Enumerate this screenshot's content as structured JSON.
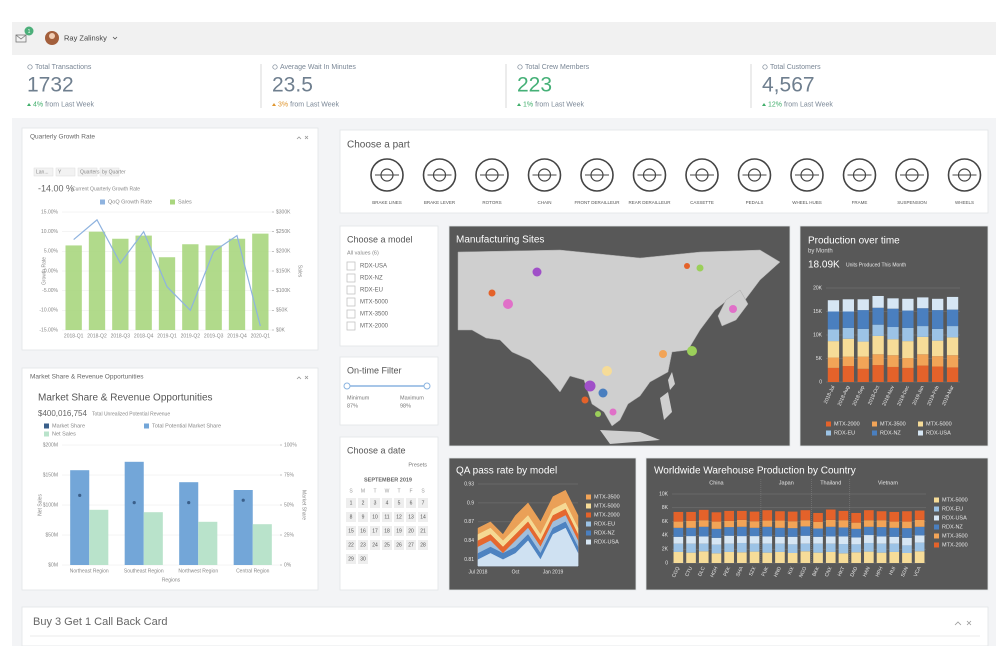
{
  "header": {
    "notifications": "1",
    "user": "Ray Zalinsky"
  },
  "kpis": [
    {
      "label": "Total Transactions",
      "value": "1732",
      "color": "#6f7f8f",
      "change": "4%",
      "change_color": "#3fae6a",
      "note": "from Last Week"
    },
    {
      "label": "Average Wait In Minutes",
      "value": "23.5",
      "color": "#6f7f8f",
      "change": "3%",
      "change_color": "#e0962f",
      "note": "from Last Week"
    },
    {
      "label": "Total Crew Members",
      "value": "223",
      "color": "#45b077",
      "change": "1%",
      "change_color": "#3fae6a",
      "note": "from Last Week"
    },
    {
      "label": "Total Customers",
      "value": "4,567",
      "color": "#6f7f8f",
      "change": "12%",
      "change_color": "#3fae6a",
      "note": "from Last Week"
    }
  ],
  "parts": {
    "title": "Choose a part",
    "items": [
      "BRAKE LINES",
      "BRAKE LEVER",
      "ROTORS",
      "CHAIN",
      "FRONT DERAILLEUR",
      "REAR DERAILLEUR",
      "CASSETTE",
      "PEDALS",
      "WHEEL HUBS",
      "FRAME",
      "SUSPENSION",
      "WHEELS"
    ]
  },
  "models": {
    "title": "Choose a model",
    "all": "All values (6)",
    "items": [
      "RDX-USA",
      "RDX-NZ",
      "RDX-EU",
      "MTX-5000",
      "MTX-3500",
      "MTX-2000"
    ]
  },
  "filter": {
    "title": "On-time Filter",
    "min_label": "Minimum",
    "min": "87%",
    "max_label": "Maximum",
    "max": "98%"
  },
  "date": {
    "title": "Choose a date",
    "presets": "Presets",
    "month": "SEPTEMBER 2019",
    "weekdays": [
      "S",
      "M",
      "T",
      "W",
      "T",
      "F",
      "S"
    ],
    "days": [
      "1",
      "2",
      "3",
      "4",
      "5",
      "6",
      "7",
      "8",
      "9",
      "10",
      "11",
      "12",
      "13",
      "14",
      "15",
      "16",
      "17",
      "18",
      "19",
      "20",
      "21",
      "22",
      "23",
      "24",
      "25",
      "26",
      "27",
      "28",
      "29",
      "30"
    ]
  },
  "map": {
    "title": "Manufacturing Sites"
  },
  "promo": {
    "title": "Buy 3 Get 1 Call Back Card"
  },
  "chart_data": [
    {
      "type": "combo",
      "title": "Quarterly Growth Rate",
      "toolbar": [
        "Lan...",
        "Y",
        "Quarters",
        "by Quarter"
      ],
      "kpi": "-14.00 %",
      "kpi_note": "Current Quarterly Growth Rate",
      "categories": [
        "2018-Q1",
        "2018-Q2",
        "2018-Q3",
        "2018-Q4",
        "2019-Q1",
        "2019-Q2",
        "2019-Q3",
        "2019-Q4",
        "2020-Q1"
      ],
      "series": [
        {
          "name": "QoQ Growth Rate",
          "type": "line",
          "color": "#8fb3df",
          "values": [
            8,
            13,
            2,
            10,
            -4,
            -10,
            5,
            9,
            -14
          ]
        },
        {
          "name": "Sales",
          "type": "bar",
          "axis": "y2",
          "color": "#a9d67e",
          "values": [
            215000,
            250000,
            232000,
            240000,
            185000,
            218000,
            215000,
            232000,
            245000
          ]
        }
      ],
      "ylabel": "Growth Rate",
      "y2label": "Sales",
      "ylim": [
        -15,
        15
      ],
      "yticks": [
        {
          "value": -15,
          "label": "-15.00%"
        },
        {
          "value": -10,
          "label": "-10.00%"
        },
        {
          "value": -5,
          "label": "-5.00%"
        },
        {
          "value": 0,
          "label": "0.00%"
        },
        {
          "value": 5,
          "label": "5.00%"
        },
        {
          "value": 10,
          "label": "10.00%"
        },
        {
          "value": 15,
          "label": "15.00%"
        }
      ],
      "y2lim": [
        0,
        300000
      ],
      "y2ticks": [
        {
          "value": 0,
          "label": "$0K"
        },
        {
          "value": 50000,
          "label": "$50K"
        },
        {
          "value": 100000,
          "label": "$100K"
        },
        {
          "value": 150000,
          "label": "$150K"
        },
        {
          "value": 200000,
          "label": "$200K"
        },
        {
          "value": 250000,
          "label": "$250K"
        },
        {
          "value": 300000,
          "label": "$300K"
        }
      ],
      "grid": true
    },
    {
      "type": "grouped-bar",
      "panel_title": "Market Share & Revenue Opportunities",
      "title": "Market Share & Revenue Opportunities",
      "kpi": "$400,016,754",
      "kpi_note": "Total Unrealized Potential Revenue",
      "categories": [
        "Northeast Region",
        "Southeast Region",
        "Northwest Region",
        "Central Region"
      ],
      "series": [
        {
          "name": "Market Share",
          "type": "dot",
          "axis": "y2",
          "color": "#3a5f8a",
          "values": [
            58,
            52,
            52,
            54
          ]
        },
        {
          "name": "Total Potential Market Share",
          "type": "bar",
          "color": "#73a6d8",
          "values": [
            158000000,
            172000000,
            138000000,
            125000000
          ]
        },
        {
          "name": "Net Sales",
          "type": "bar",
          "color": "#b9e3cb",
          "values": [
            92000000,
            88000000,
            72000000,
            68000000
          ]
        }
      ],
      "xlabel": "Regions",
      "ylabel": "Net Sales",
      "y2label": "Market Share",
      "ylim": [
        0,
        200000000
      ],
      "yticks": [
        {
          "value": 0,
          "label": "$0M"
        },
        {
          "value": 50000000,
          "label": "$50M"
        },
        {
          "value": 100000000,
          "label": "$100M"
        },
        {
          "value": 150000000,
          "label": "$150M"
        },
        {
          "value": 200000000,
          "label": "$200M"
        }
      ],
      "y2lim": [
        0,
        100
      ],
      "y2ticks": [
        {
          "value": 0,
          "label": "0%"
        },
        {
          "value": 25,
          "label": "25%"
        },
        {
          "value": 50,
          "label": "50%"
        },
        {
          "value": 75,
          "label": "75%"
        },
        {
          "value": 100,
          "label": "100%"
        }
      ],
      "grid": true
    },
    {
      "type": "stacked-bar",
      "title": "Production over time",
      "subtitle": "by Month",
      "kpi": "18.09K",
      "kpi_note": "Units Produced This Month",
      "categories": [
        "2018-Jul",
        "2018-Aug",
        "2018-Sep",
        "2018-Oct",
        "2018-Nov",
        "2018-Dec",
        "2019-Jan",
        "2019-Feb",
        "2019-Mar"
      ],
      "series": [
        {
          "name": "MTX-2000",
          "color": "#e4622a",
          "values": [
            3000,
            3400,
            2800,
            3600,
            3200,
            3000,
            3500,
            3300,
            3100
          ]
        },
        {
          "name": "MTX-3500",
          "color": "#f2a457",
          "values": [
            2200,
            2000,
            2600,
            2300,
            2500,
            2100,
            2400,
            2200,
            2600
          ]
        },
        {
          "name": "MTX-5000",
          "color": "#f6dc98",
          "values": [
            3500,
            3800,
            3200,
            3900,
            3400,
            3600,
            3700,
            3300,
            3800
          ]
        },
        {
          "name": "RDX-EU",
          "color": "#9cc3e6",
          "values": [
            2500,
            2300,
            2700,
            2400,
            2600,
            2800,
            2300,
            2500,
            2400
          ]
        },
        {
          "name": "RDX-NZ",
          "color": "#4a7fbf",
          "values": [
            3800,
            3500,
            4000,
            3600,
            3900,
            3700,
            3800,
            4000,
            3500
          ]
        },
        {
          "name": "RDX-USA",
          "color": "#d6e6f4",
          "values": [
            2400,
            2600,
            2300,
            2500,
            2200,
            2500,
            2300,
            2400,
            2700
          ]
        }
      ],
      "ylim": [
        0,
        20000
      ],
      "yticks": [
        0,
        {
          "value": 5000,
          "label": "5K"
        },
        {
          "value": 10000,
          "label": "10K"
        },
        {
          "value": 15000,
          "label": "15K"
        },
        {
          "value": 20000,
          "label": "20K"
        }
      ],
      "grid": true
    },
    {
      "type": "area",
      "title": "QA pass rate by model",
      "categories": [
        "Jul 2018",
        null,
        null,
        "Oct",
        null,
        null,
        "Jan 2019",
        null,
        null
      ],
      "series": [
        {
          "name": "MTX-3500",
          "color": "#f2a457",
          "values": [
            0.86,
            0.87,
            0.85,
            0.88,
            0.9,
            0.87,
            0.91,
            0.92,
            0.88
          ]
        },
        {
          "name": "MTX-5000",
          "color": "#f6dc98",
          "values": [
            0.85,
            0.86,
            0.84,
            0.86,
            0.88,
            0.85,
            0.89,
            0.9,
            0.86
          ]
        },
        {
          "name": "MTX-2000",
          "color": "#e4622a",
          "values": [
            0.84,
            0.85,
            0.83,
            0.85,
            0.87,
            0.84,
            0.88,
            0.89,
            0.85
          ]
        },
        {
          "name": "RDX-EU",
          "color": "#9cc3e6",
          "values": [
            0.83,
            0.84,
            0.82,
            0.84,
            0.86,
            0.83,
            0.87,
            0.88,
            0.84
          ]
        },
        {
          "name": "RDX-NZ",
          "color": "#4a7fbf",
          "values": [
            0.82,
            0.83,
            0.82,
            0.83,
            0.85,
            0.82,
            0.86,
            0.87,
            0.83
          ]
        },
        {
          "name": "RDX-USA",
          "color": "#d6e6f4",
          "values": [
            0.81,
            0.82,
            0.81,
            0.82,
            0.84,
            0.81,
            0.85,
            0.86,
            0.82
          ]
        }
      ],
      "ylim": [
        0.8,
        0.93
      ],
      "yticks": [
        0.81,
        0.84,
        0.87,
        0.9,
        0.93
      ],
      "grid": true
    },
    {
      "type": "stacked-bar",
      "title": "Worldwide Warehouse Production by Country",
      "groups": [
        {
          "label": "China",
          "categories": [
            "CGQ",
            "CTU",
            "DLC",
            "HGH",
            "PEK",
            "SHA",
            "SZX"
          ]
        },
        {
          "label": "Japan",
          "categories": [
            "FUK",
            "HND",
            "KIX",
            "NGO"
          ]
        },
        {
          "label": "Thailand",
          "categories": [
            "BKK",
            "CNX",
            "HKT"
          ]
        },
        {
          "label": "Vietnam",
          "categories": [
            "DAD",
            "HAN",
            "HPH",
            "HUI",
            "SGN",
            "VCA"
          ]
        }
      ],
      "series": [
        {
          "name": "MTX-5000",
          "color": "#f6dc98",
          "values": [
            1600,
            1500,
            1700,
            1400,
            1600,
            1550,
            1650,
            1500,
            1600,
            1450,
            1700,
            1500,
            1600,
            1400,
            1550,
            1650,
            1500,
            1600,
            1450,
            1700
          ]
        },
        {
          "name": "RDX-EU",
          "color": "#9cc3e6",
          "values": [
            1200,
            1300,
            1100,
            1250,
            1200,
            1350,
            1150,
            1300,
            1200,
            1250,
            1100,
            1300,
            1200,
            1350,
            1150,
            1250,
            1300,
            1200,
            1100,
            1250
          ]
        },
        {
          "name": "RDX-USA",
          "color": "#d6e6f4",
          "values": [
            1000,
            1100,
            1050,
            1000,
            1150,
            1000,
            1100,
            1050,
            1000,
            1100,
            1150,
            1000,
            1050,
            1100,
            1000,
            1150,
            1050,
            1000,
            1100,
            1050
          ]
        },
        {
          "name": "RDX-NZ",
          "color": "#4a7fbf",
          "values": [
            1300,
            1200,
            1400,
            1300,
            1250,
            1350,
            1200,
            1400,
            1300,
            1250,
            1350,
            1200,
            1400,
            1300,
            1250,
            1200,
            1350,
            1300,
            1400,
            1250
          ]
        },
        {
          "name": "MTX-3500",
          "color": "#f2a457",
          "values": [
            900,
            1000,
            950,
            1050,
            900,
            1000,
            950,
            900,
            1050,
            1000,
            900,
            950,
            1000,
            1050,
            900,
            950,
            1000,
            900,
            950,
            1000
          ]
        },
        {
          "name": "MTX-2000",
          "color": "#e4622a",
          "values": [
            1400,
            1300,
            1500,
            1350,
            1450,
            1300,
            1400,
            1500,
            1350,
            1400,
            1450,
            1300,
            1500,
            1350,
            1400,
            1450,
            1300,
            1400,
            1500,
            1350
          ]
        }
      ],
      "ylim": [
        0,
        10000
      ],
      "yticks": [
        0,
        {
          "value": 2000,
          "label": "2K"
        },
        {
          "value": 4000,
          "label": "4K"
        },
        {
          "value": 6000,
          "label": "6K"
        },
        {
          "value": 8000,
          "label": "8K"
        },
        {
          "value": 10000,
          "label": "10K"
        }
      ],
      "grid": true
    }
  ]
}
